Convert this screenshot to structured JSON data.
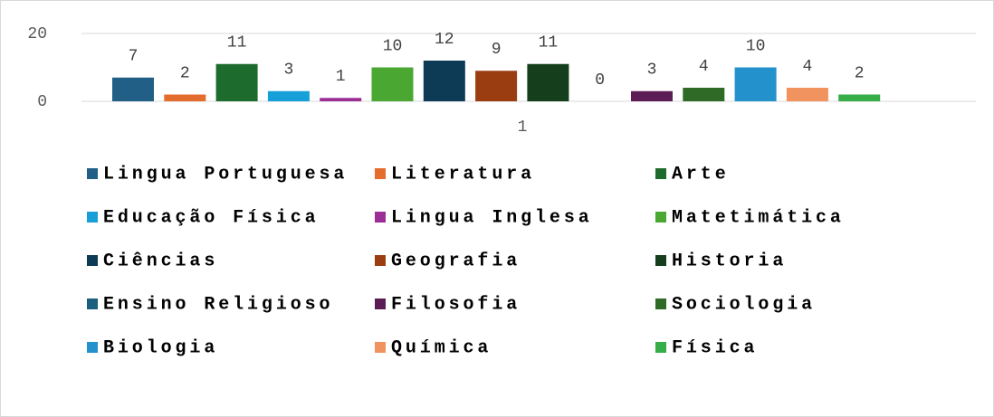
{
  "chart_data": {
    "type": "bar",
    "categories": [
      "1"
    ],
    "series": [
      {
        "name": "Lingua Portuguesa",
        "color": "#215f86",
        "values": [
          7
        ]
      },
      {
        "name": "Literatura",
        "color": "#e46c2c",
        "values": [
          2
        ]
      },
      {
        "name": "Arte",
        "color": "#1e6b2e",
        "values": [
          11
        ]
      },
      {
        "name": "Educação Física",
        "color": "#17a0d8",
        "values": [
          3
        ]
      },
      {
        "name": "Lingua Inglesa",
        "color": "#9b2f96",
        "values": [
          1
        ]
      },
      {
        "name": "Matetimática",
        "color": "#4aa832",
        "values": [
          10
        ]
      },
      {
        "name": "Ciências",
        "color": "#0d3a55",
        "values": [
          12
        ]
      },
      {
        "name": "Geografia",
        "color": "#9a3e12",
        "values": [
          9
        ]
      },
      {
        "name": "Historia",
        "color": "#143e1c",
        "values": [
          11
        ]
      },
      {
        "name": "Ensino Religioso",
        "color": "#1a5e80",
        "values": [
          0
        ]
      },
      {
        "name": "Filosofia",
        "color": "#5c1c55",
        "values": [
          3
        ]
      },
      {
        "name": "Sociologia",
        "color": "#2f6b26",
        "values": [
          4
        ]
      },
      {
        "name": "Biologia",
        "color": "#2391cc",
        "values": [
          10
        ]
      },
      {
        "name": "Química",
        "color": "#f0935e",
        "values": [
          4
        ]
      },
      {
        "name": "Física",
        "color": "#35ad48",
        "values": [
          2
        ]
      }
    ],
    "ylim": [
      0,
      20
    ],
    "yticks": [
      0,
      20
    ],
    "grid": true,
    "legend": "bottom"
  }
}
